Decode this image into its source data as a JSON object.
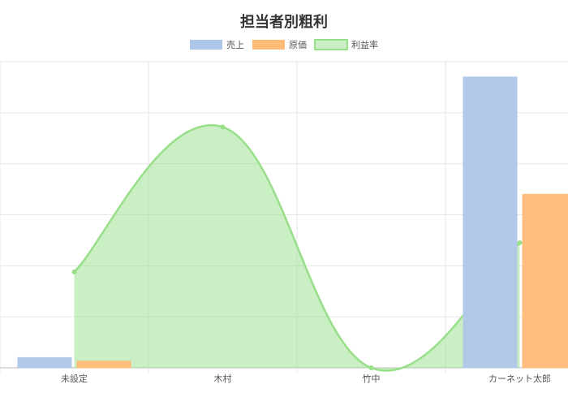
{
  "chart_data": {
    "type": "bar",
    "title": "担当者別粗利",
    "categories": [
      "未設定",
      "木村",
      "竹中",
      "カーネット太郎"
    ],
    "series": [
      {
        "name": "売上",
        "type": "bar",
        "color": "#aec7e8",
        "values": [
          2,
          0,
          0,
          57
        ]
      },
      {
        "name": "原価",
        "type": "bar",
        "color": "#ffbb78",
        "values": [
          1.3,
          0,
          0,
          34
        ]
      },
      {
        "name": "利益率",
        "type": "line-area",
        "color": "#98df8a",
        "values": [
          18.8,
          47.2,
          0,
          24.5
        ]
      }
    ],
    "ylim": [
      0,
      60
    ],
    "grid": true,
    "legend_position": "top-center",
    "y_tick_labels_visible": false
  }
}
